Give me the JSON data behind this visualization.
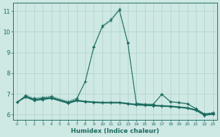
{
  "xlabel": "Humidex (Indice chaleur)",
  "background_color": "#cee8e4",
  "line_color": "#1a6b5e",
  "grid_color": "#aecfca",
  "xlim": [
    -0.5,
    23.5
  ],
  "ylim": [
    5.75,
    11.4
  ],
  "xticks": [
    0,
    1,
    2,
    3,
    4,
    5,
    6,
    7,
    8,
    9,
    10,
    11,
    12,
    13,
    14,
    15,
    16,
    17,
    18,
    19,
    20,
    21,
    22,
    23
  ],
  "yticks": [
    6,
    7,
    8,
    9,
    10,
    11
  ],
  "series": [
    {
      "x": [
        0,
        1,
        2,
        3,
        4,
        6,
        7,
        8,
        9,
        10,
        11,
        12,
        13,
        14,
        15,
        16,
        17,
        18,
        19,
        20,
        21,
        22,
        23
      ],
      "y": [
        6.6,
        6.95,
        6.8,
        6.85,
        6.9,
        6.65,
        6.8,
        7.6,
        9.3,
        10.3,
        10.6,
        11.1,
        9.5,
        6.55,
        6.5,
        6.5,
        7.0,
        6.65,
        6.6,
        6.55,
        6.3,
        6.05,
        6.1
      ],
      "style": "dotted"
    },
    {
      "x": [
        0,
        1,
        2,
        3,
        4,
        6,
        7,
        8,
        9,
        10,
        11,
        12,
        13,
        14,
        15,
        16,
        17,
        18,
        19,
        20,
        21,
        22,
        23
      ],
      "y": [
        6.6,
        6.9,
        6.75,
        6.8,
        6.85,
        6.6,
        6.75,
        7.6,
        9.25,
        10.25,
        10.55,
        11.05,
        9.45,
        6.55,
        6.5,
        6.5,
        6.98,
        6.62,
        6.57,
        6.52,
        6.28,
        6.03,
        6.08
      ],
      "style": "solid"
    },
    {
      "x": [
        0,
        1,
        2,
        3,
        4,
        6,
        7,
        8,
        9,
        10,
        11,
        12,
        13,
        14,
        15,
        16,
        17,
        18,
        19,
        20,
        21,
        22,
        23
      ],
      "y": [
        6.6,
        6.88,
        6.72,
        6.76,
        6.82,
        6.58,
        6.7,
        6.65,
        6.62,
        6.6,
        6.6,
        6.6,
        6.55,
        6.5,
        6.48,
        6.46,
        6.44,
        6.42,
        6.38,
        6.34,
        6.24,
        6.0,
        6.05
      ],
      "style": "solid"
    },
    {
      "x": [
        0,
        1,
        2,
        3,
        4,
        6,
        7,
        8,
        9,
        10,
        11,
        12,
        13,
        14,
        15,
        16,
        17,
        18,
        19,
        20,
        21,
        22,
        23
      ],
      "y": [
        6.6,
        6.86,
        6.7,
        6.74,
        6.8,
        6.56,
        6.68,
        6.63,
        6.6,
        6.58,
        6.58,
        6.58,
        6.53,
        6.48,
        6.46,
        6.44,
        6.42,
        6.4,
        6.36,
        6.32,
        6.22,
        5.98,
        6.03
      ],
      "style": "solid"
    },
    {
      "x": [
        0,
        1,
        2,
        3,
        4,
        6,
        7,
        8,
        9,
        10,
        11,
        12,
        13,
        14,
        15,
        16,
        17,
        18,
        19,
        20,
        21,
        22,
        23
      ],
      "y": [
        6.6,
        6.84,
        6.68,
        6.72,
        6.78,
        6.54,
        6.66,
        6.61,
        6.58,
        6.56,
        6.56,
        6.56,
        6.51,
        6.46,
        6.44,
        6.42,
        6.4,
        6.38,
        6.34,
        6.3,
        6.2,
        5.96,
        6.01
      ],
      "style": "solid"
    }
  ]
}
